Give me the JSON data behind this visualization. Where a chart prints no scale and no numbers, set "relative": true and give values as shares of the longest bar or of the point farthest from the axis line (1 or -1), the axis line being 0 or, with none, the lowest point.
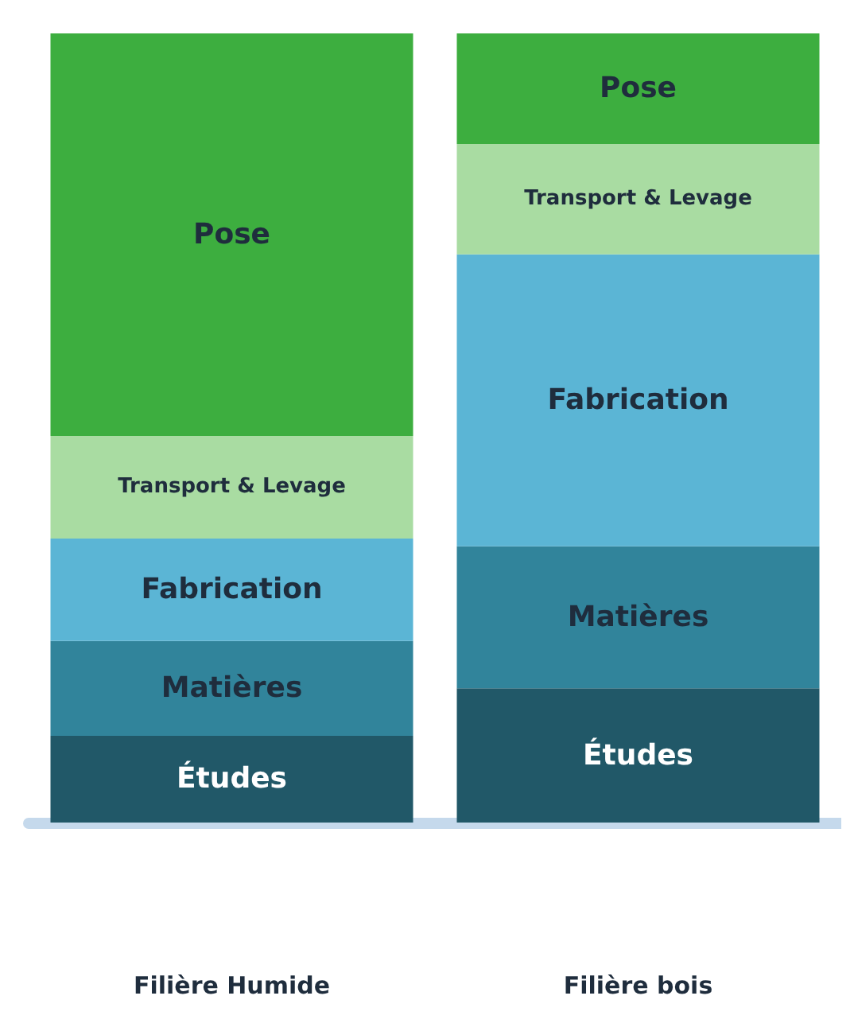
{
  "chart_data": {
    "type": "bar",
    "stacked": true,
    "relative": true,
    "categories": [
      "Filière Humide",
      "Filière bois"
    ],
    "series": [
      {
        "name": "Études",
        "color": "#215868",
        "values": [
          0.11,
          0.17
        ]
      },
      {
        "name": "Matières",
        "color": "#31849b",
        "values": [
          0.12,
          0.18
        ]
      },
      {
        "name": "Fabrication",
        "color": "#5bb5d5",
        "values": [
          0.13,
          0.37
        ]
      },
      {
        "name": "Transport & Levage",
        "color": "#a9dca2",
        "values": [
          0.13,
          0.14
        ]
      },
      {
        "name": "Pose",
        "color": "#3dae3f",
        "values": [
          0.51,
          0.14
        ]
      }
    ],
    "legend": false,
    "grid": false
  }
}
